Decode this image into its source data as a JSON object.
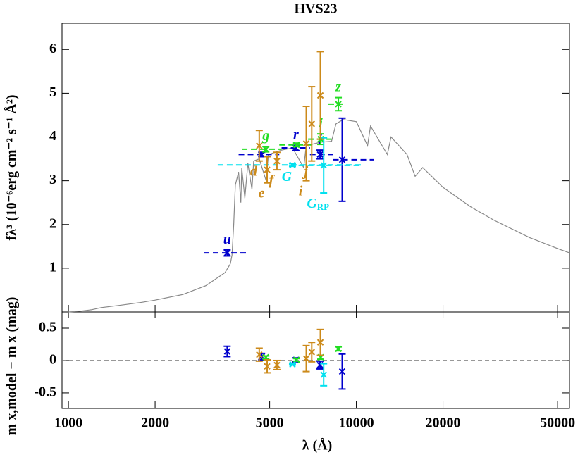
{
  "chart_data": {
    "type": "sed",
    "title": "HVS23",
    "y_label": "fλ³ (10⁻⁶erg cm⁻² s⁻¹ Å²)",
    "resid_label": "m x,model − m x (mag)",
    "x_label": "λ (Å)",
    "xlog": true,
    "xlim": [
      950,
      55000
    ],
    "xticks": [
      1000,
      2000,
      5000,
      10000,
      20000,
      50000
    ],
    "ylim": [
      0,
      6.6
    ],
    "yticks": [
      1,
      2,
      3,
      4,
      5,
      6
    ],
    "resid_ylim": [
      -0.74,
      0.75
    ],
    "resid_yticks": [
      -0.5,
      0,
      0.5
    ],
    "resid_reference": 0,
    "model": {
      "color": "#888888",
      "x": [
        1000,
        1100,
        1200,
        1300,
        1500,
        1800,
        2000,
        2500,
        3000,
        3500,
        3650,
        3700,
        3750,
        3800,
        3900,
        3970,
        4000,
        4100,
        4200,
        4340,
        4400,
        4600,
        4861,
        4950,
        5500,
        6000,
        6563,
        6700,
        7500,
        8200,
        8500,
        9000,
        10000,
        10940,
        11200,
        12820,
        13200,
        15000,
        16000,
        17000,
        20000,
        25000,
        30000,
        40000,
        50000,
        55000
      ],
      "y": [
        0,
        0.02,
        0.05,
        0.1,
        0.15,
        0.22,
        0.27,
        0.4,
        0.6,
        0.9,
        1.1,
        1.3,
        2.0,
        2.9,
        3.2,
        2.5,
        3.3,
        2.6,
        3.4,
        2.8,
        3.45,
        3.5,
        3.0,
        3.6,
        3.7,
        3.75,
        3.3,
        3.8,
        3.88,
        3.9,
        4.3,
        4.4,
        4.35,
        3.8,
        4.25,
        3.6,
        4.0,
        3.6,
        3.1,
        3.3,
        2.85,
        2.4,
        2.1,
        1.7,
        1.45,
        1.35
      ]
    },
    "photometry": [
      {
        "label": "u",
        "color": "#0000cc",
        "x": 3560,
        "y": 1.35,
        "yerr": 0.07,
        "xrange": [
          2950,
          4150
        ],
        "resid": 0.14,
        "resid_err": 0.08
      },
      {
        "color": "#0000cc",
        "x": 4690,
        "y": 3.6,
        "yerr": 0.05,
        "xrange": [
          3900,
          5400
        ],
        "resid": 0.06,
        "resid_err": 0.05
      },
      {
        "label": "r",
        "color": "#0000cc",
        "x": 6170,
        "y": 3.75,
        "yerr": 0.06,
        "xrange": [
          5500,
          6900
        ],
        "resid": 0.01,
        "resid_err": 0.03
      },
      {
        "label": "i",
        "color": "#0000cc",
        "x": 7480,
        "y": 3.6,
        "yerr": 0.1,
        "xrange": [
          6900,
          8300
        ],
        "resid": -0.07,
        "resid_err": 0.06
      },
      {
        "color": "#0000cc",
        "x": 8930,
        "y": 3.48,
        "yerr": 0.95,
        "xrange": [
          8300,
          11500
        ],
        "resid": -0.17,
        "resid_err": 0.27
      },
      {
        "label": "g",
        "color": "#22dd22",
        "x": 4850,
        "y": 3.72,
        "yerr": 0.06,
        "xrange": [
          4000,
          5500
        ],
        "resid": 0.05,
        "resid_err": 0.02
      },
      {
        "color": "#22dd22",
        "x": 6200,
        "y": 3.82,
        "yerr": 0.04,
        "xrange": [
          5400,
          7000
        ],
        "resid": 0.01,
        "resid_err": 0.02
      },
      {
        "label": "i",
        "color": "#22dd22",
        "x": 7520,
        "y": 3.95,
        "yerr": 0.12,
        "xrange": [
          6800,
          8200
        ],
        "resid": 0.05,
        "resid_err": 0.03
      },
      {
        "label": "z",
        "color": "#22dd22",
        "x": 8660,
        "y": 4.75,
        "yerr": 0.15,
        "xrange": [
          8000,
          9300
        ],
        "resid": 0.18,
        "resid_err": 0.03
      },
      {
        "label": "G",
        "color": "#00e0ee",
        "x": 6000,
        "y": 3.36,
        "yerr": 0.03,
        "xrange": [
          3300,
          10500
        ],
        "resid": -0.06,
        "resid_err": 0.01
      },
      {
        "label": "G",
        "label_sub": "RP",
        "color": "#00e0ee",
        "x": 7700,
        "y": 3.35,
        "yerr": 0.63,
        "xrange": [
          6300,
          10500
        ],
        "resid": -0.22,
        "resid_err": 0.17
      },
      {
        "label": "d",
        "color": "#cc8a1a",
        "x": 4600,
        "y": 3.8,
        "yerr": 0.35,
        "resid": 0.09,
        "resid_err": 0.1
      },
      {
        "label": "e",
        "color": "#cc8a1a",
        "x": 4900,
        "y": 3.25,
        "yerr": 0.3,
        "resid": -0.09,
        "resid_err": 0.1
      },
      {
        "label": "f",
        "color": "#cc8a1a",
        "x": 5300,
        "y": 3.45,
        "yerr": 0.2,
        "resid": -0.07,
        "resid_err": 0.07
      },
      {
        "label": "i",
        "color": "#cc8a1a",
        "x": 6700,
        "y": 3.85,
        "yerr": 0.85,
        "resid": 0.03,
        "resid_err": 0.2
      },
      {
        "label": "j",
        "color": "#cc8a1a",
        "x": 7000,
        "y": 4.3,
        "yerr": 0.85,
        "resid": 0.13,
        "resid_err": 0.15
      },
      {
        "color": "#cc8a1a",
        "x": 7500,
        "y": 4.95,
        "yerr": 1.0,
        "resid": 0.28,
        "resid_err": 0.2
      }
    ]
  }
}
